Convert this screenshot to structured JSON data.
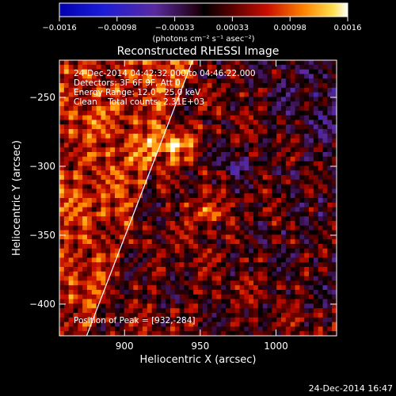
{
  "chart_data": {
    "type": "heatmap",
    "title": "Reconstructed RHESSI Image",
    "xlabel": "Heliocentric X (arcsec)",
    "ylabel": "Heliocentric Y (arcsec)",
    "xlim": [
      857,
      1040
    ],
    "ylim": [
      -423,
      -223
    ],
    "x_ticks": [
      900,
      950,
      1000
    ],
    "y_ticks": [
      -250,
      -300,
      -350,
      -400
    ],
    "x_tick_labels": [
      "900",
      "950",
      "1000"
    ],
    "y_tick_labels": [
      "−250",
      "−300",
      "−350",
      "−400"
    ],
    "colorbar": {
      "range": [
        -0.0016,
        0.0016
      ],
      "tick_labels": [
        "−0.0016",
        "−0.00098",
        "−0.00033",
        "0.00033",
        "0.00098",
        "0.0016"
      ],
      "units_label": "(photons cm⁻² s⁻¹ asec⁻²)"
    },
    "annotations": [
      "24-Dec-2014 04:42:32.000 to 04:46:22.000",
      "Detectors: 3F 6F 9F, Att 0",
      "Energy Range: 12.0 - 25.0 keV",
      "Clean    Total counts: 2.31E+03"
    ],
    "peak_label": "Position of Peak = [932,-284]",
    "peak": [
      932,
      -284
    ],
    "limb_line": [
      [
        875,
        -423
      ],
      [
        945,
        -223
      ]
    ]
  },
  "footer": {
    "date": "24-Dec-2014 16:47"
  }
}
